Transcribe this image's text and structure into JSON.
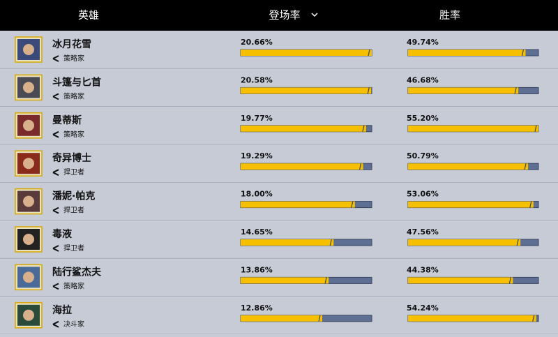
{
  "header": {
    "hero": "英雄",
    "pick_rate": "登场率",
    "win_rate": "胜率"
  },
  "rows": [
    {
      "name": "冰月花雪",
      "role": "策略家",
      "pick_rate": 20.66,
      "pick_rate_label": "20.66%",
      "win_rate": 49.74,
      "win_rate_label": "49.74%"
    },
    {
      "name": "斗篷与匕首",
      "role": "策略家",
      "pick_rate": 20.58,
      "pick_rate_label": "20.58%",
      "win_rate": 46.68,
      "win_rate_label": "46.68%"
    },
    {
      "name": "曼蒂斯",
      "role": "策略家",
      "pick_rate": 19.77,
      "pick_rate_label": "19.77%",
      "win_rate": 55.2,
      "win_rate_label": "55.20%"
    },
    {
      "name": "奇异博士",
      "role": "捍卫者",
      "pick_rate": 19.29,
      "pick_rate_label": "19.29%",
      "win_rate": 50.79,
      "win_rate_label": "50.79%"
    },
    {
      "name": "潘妮·帕克",
      "role": "捍卫者",
      "pick_rate": 18.0,
      "pick_rate_label": "18.00%",
      "win_rate": 53.06,
      "win_rate_label": "53.06%"
    },
    {
      "name": "毒液",
      "role": "捍卫者",
      "pick_rate": 14.65,
      "pick_rate_label": "14.65%",
      "win_rate": 47.56,
      "win_rate_label": "47.56%"
    },
    {
      "name": "陆行鲨杰夫",
      "role": "策略家",
      "pick_rate": 13.86,
      "pick_rate_label": "13.86%",
      "win_rate": 44.38,
      "win_rate_label": "44.38%"
    },
    {
      "name": "海拉",
      "role": "决斗家",
      "pick_rate": 12.86,
      "pick_rate_label": "12.86%",
      "win_rate": 54.24,
      "win_rate_label": "54.24%"
    }
  ]
}
